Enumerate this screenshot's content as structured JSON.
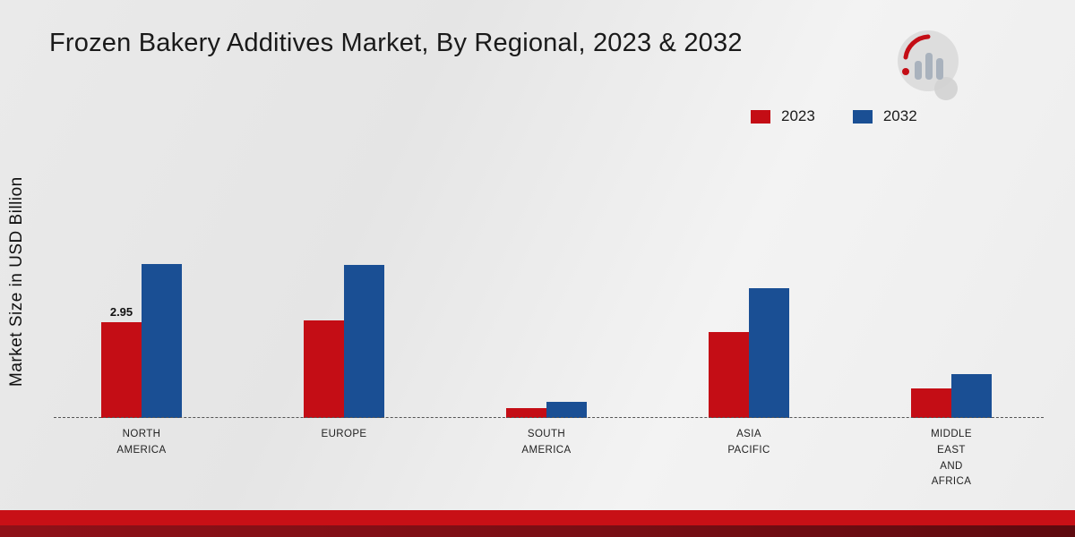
{
  "title": "Frozen Bakery Additives Market, By Regional, 2023 & 2032",
  "y_axis_label": "Market Size in USD Billion",
  "legend": [
    {
      "label": "2023",
      "color": "#c40d15"
    },
    {
      "label": "2032",
      "color": "#1a4f94"
    }
  ],
  "chart_data": {
    "type": "bar",
    "categories": [
      "NORTH AMERICA",
      "EUROPE",
      "SOUTH AMERICA",
      "ASIA PACIFIC",
      "MIDDLE EAST AND AFRICA"
    ],
    "category_lines": [
      [
        "NORTH",
        "AMERICA"
      ],
      [
        "EUROPE"
      ],
      [
        "SOUTH",
        "AMERICA"
      ],
      [
        "ASIA",
        "PACIFIC"
      ],
      [
        "MIDDLE",
        "EAST",
        "AND",
        "AFRICA"
      ]
    ],
    "series": [
      {
        "name": "2023",
        "color": "#c40d15",
        "values": [
          2.95,
          3.0,
          0.3,
          2.65,
          0.9
        ]
      },
      {
        "name": "2032",
        "color": "#1a4f94",
        "values": [
          4.75,
          4.7,
          0.5,
          4.0,
          1.35
        ]
      }
    ],
    "data_labels": [
      {
        "series": "2023",
        "category_index": 0,
        "text": "2.95"
      }
    ],
    "title": "Frozen Bakery Additives Market, By Regional, 2023 & 2032",
    "xlabel": "",
    "ylabel": "Market Size in USD Billion",
    "ylim": [
      0,
      5.5
    ],
    "grid": false,
    "legend_position": "top-right",
    "baseline_style": "dashed"
  }
}
